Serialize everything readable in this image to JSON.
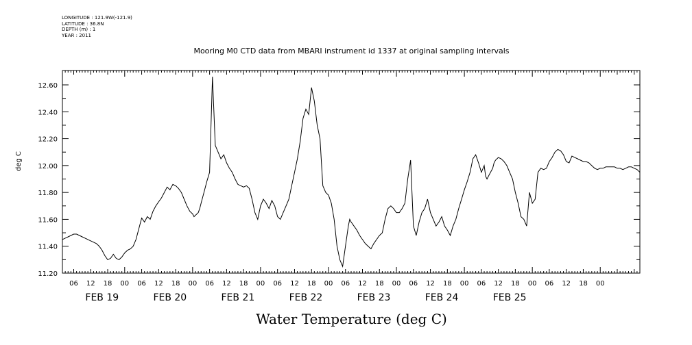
{
  "header": {
    "longitude": "LONGITUDE : 121.9W(-121.9)",
    "latitude": "LATITUDE : 36.8N",
    "depth": "DEPTH (m) : 1",
    "year": "YEAR : 2011"
  },
  "chart_data": {
    "type": "line",
    "title": "Mooring M0 CTD data from MBARI instrument id 1337 at original sampling intervals",
    "xlabel": "Water Temperature (deg C)",
    "ylabel": "deg C",
    "ylim": [
      11.2,
      12.7
    ],
    "xlim_hours": [
      0,
      204
    ],
    "y_ticks": [
      "11.20",
      "11.40",
      "11.60",
      "11.80",
      "12.00",
      "12.20",
      "12.40",
      "12.60"
    ],
    "x_hour_ticks": [
      "06",
      "12",
      "18",
      "00",
      "06",
      "12",
      "18",
      "00",
      "06",
      "12",
      "18",
      "00",
      "06",
      "12",
      "18",
      "00",
      "06",
      "12",
      "18",
      "00",
      "06",
      "12",
      "18",
      "00",
      "06",
      "12",
      "18",
      "00",
      "06",
      "12",
      "18",
      "00"
    ],
    "x_day_labels": [
      "FEB 19",
      "FEB 20",
      "FEB 21",
      "FEB 22",
      "FEB 23",
      "FEB 24",
      "FEB 25"
    ],
    "grid": false,
    "series": [
      {
        "name": "",
        "x": [
          0,
          1,
          2,
          3,
          4,
          5,
          6,
          7,
          8,
          9,
          10,
          11,
          12,
          13,
          14,
          15,
          16,
          17,
          18,
          19,
          20,
          21,
          22,
          23,
          24,
          25,
          26,
          27,
          28,
          29,
          30,
          31,
          32,
          33,
          34,
          35,
          36,
          37,
          38,
          39,
          40,
          41,
          42,
          43,
          44,
          45,
          46,
          46.5,
          47,
          48,
          48.5,
          49,
          50,
          51,
          52,
          53,
          54,
          55,
          56,
          57,
          58,
          59,
          60,
          61,
          62,
          63,
          64,
          65,
          66,
          67,
          68,
          69,
          70,
          71,
          72,
          73,
          74,
          75,
          76,
          77,
          78,
          79,
          80,
          81,
          82,
          83,
          84,
          85,
          86,
          87,
          88,
          89,
          90,
          91,
          92,
          93,
          94,
          95,
          96,
          97,
          98,
          99,
          100,
          101,
          101.5,
          102,
          103,
          104,
          105,
          106,
          107,
          108,
          109,
          110,
          111,
          112,
          113,
          114,
          115,
          116,
          117,
          118,
          119,
          120,
          121,
          122,
          123,
          124,
          125,
          126,
          127,
          128,
          129,
          130,
          131,
          132,
          133,
          134,
          135,
          136,
          137,
          138,
          139,
          140,
          141,
          142,
          143,
          144,
          145,
          146,
          147,
          148,
          149,
          149.5,
          150,
          151,
          152,
          152.5,
          153,
          154,
          155,
          156,
          157,
          158,
          159,
          160,
          161,
          162,
          163,
          164,
          165,
          166,
          167,
          168,
          169,
          170,
          171,
          172,
          173,
          174,
          175,
          176,
          177,
          178,
          179,
          180,
          181,
          182,
          183,
          184,
          185,
          186,
          187,
          188,
          189,
          190,
          191,
          192,
          193,
          194,
          195,
          196,
          197,
          198,
          199,
          200,
          201,
          202,
          203,
          204
        ],
        "values": [
          11.45,
          11.46,
          11.47,
          11.48,
          11.49,
          11.49,
          11.48,
          11.47,
          11.46,
          11.45,
          11.44,
          11.43,
          11.42,
          11.4,
          11.37,
          11.33,
          11.3,
          11.31,
          11.34,
          11.31,
          11.3,
          11.32,
          11.35,
          11.37,
          11.38,
          11.4,
          11.45,
          11.53,
          11.61,
          11.58,
          11.62,
          11.6,
          11.66,
          11.7,
          11.73,
          11.76,
          11.8,
          11.84,
          11.82,
          11.86,
          11.85,
          11.83,
          11.8,
          11.75,
          11.7,
          11.66,
          11.64,
          11.62,
          11.63,
          11.65,
          11.68,
          11.72,
          11.8,
          11.88,
          11.95,
          12.66,
          12.15,
          12.1,
          12.05,
          12.08,
          12.02,
          11.98,
          11.95,
          11.9,
          11.86,
          11.85,
          11.84,
          11.85,
          11.83,
          11.75,
          11.65,
          11.6,
          11.7,
          11.75,
          11.72,
          11.68,
          11.74,
          11.7,
          11.62,
          11.6,
          11.65,
          11.7,
          11.75,
          11.85,
          11.95,
          12.05,
          12.18,
          12.35,
          12.42,
          12.38,
          12.58,
          12.48,
          12.3,
          12.2,
          11.85,
          11.8,
          11.78,
          11.72,
          11.6,
          11.4,
          11.3,
          11.25,
          11.4,
          11.55,
          11.6,
          11.58,
          11.55,
          11.52,
          11.48,
          11.45,
          11.42,
          11.4,
          11.38,
          11.42,
          11.45,
          11.48,
          11.5,
          11.6,
          11.68,
          11.7,
          11.68,
          11.65,
          11.65,
          11.68,
          11.72,
          11.9,
          12.04,
          11.55,
          11.48,
          11.58,
          11.65,
          11.68,
          11.75,
          11.65,
          11.6,
          11.55,
          11.58,
          11.62,
          11.55,
          11.52,
          11.48,
          11.55,
          11.6,
          11.68,
          11.75,
          11.82,
          11.88,
          11.95,
          12.05,
          12.08,
          12.02,
          11.95,
          12.0,
          11.92,
          11.9,
          11.94,
          11.98,
          12.02,
          12.04,
          12.06,
          12.05,
          12.03,
          12.0,
          11.95,
          11.9,
          11.8,
          11.72,
          11.62,
          11.6,
          11.55,
          11.8,
          11.72,
          11.75,
          11.95,
          11.98,
          11.97,
          11.98,
          12.03,
          12.06,
          12.1,
          12.12,
          12.11,
          12.08,
          12.03,
          12.02,
          12.07,
          12.06,
          12.05,
          12.04,
          12.03,
          12.03,
          12.02,
          12.0,
          11.98,
          11.97,
          11.98,
          11.98,
          11.99,
          11.99,
          11.99,
          11.99,
          11.98,
          11.98,
          11.97,
          11.98,
          11.99,
          11.99,
          11.98,
          11.97,
          11.95
        ]
      }
    ]
  }
}
